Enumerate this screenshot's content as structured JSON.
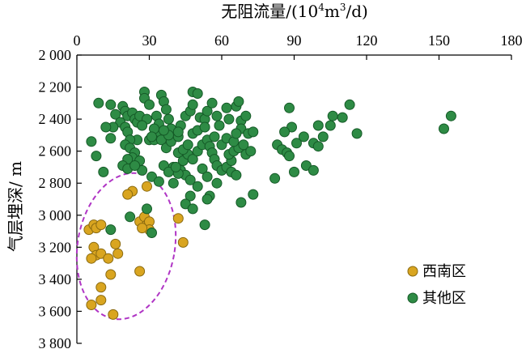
{
  "chart_data": {
    "type": "scatter",
    "x_axis": {
      "label_main": "无阻流量/(10",
      "label_sup1": "4",
      "label_mid": "m",
      "label_sup2": "3",
      "label_end": "/d)",
      "position": "top",
      "range": [
        0,
        180
      ],
      "ticks": [
        0,
        30,
        60,
        90,
        120,
        150,
        180
      ],
      "tick_labels": [
        "0",
        "30",
        "60",
        "90",
        "120",
        "150",
        "180"
      ]
    },
    "y_axis": {
      "label": "气层埋深/ m",
      "range": [
        2000,
        3800
      ],
      "inverted": true,
      "ticks": [
        2000,
        2200,
        2400,
        2600,
        2800,
        3000,
        3200,
        3400,
        3600,
        3800
      ],
      "tick_labels": [
        "2 000",
        "2 200",
        "2 400",
        "2 600",
        "2 800",
        "3 000",
        "3 200",
        "3 400",
        "3 600",
        "3 800"
      ]
    },
    "legend": {
      "position": "bottom-right"
    },
    "series": [
      {
        "name": "西南区",
        "color": "#d9a520",
        "points": [
          [
            5,
            3090
          ],
          [
            7,
            3060
          ],
          [
            8,
            3080
          ],
          [
            10,
            3060
          ],
          [
            29,
            2820
          ],
          [
            23,
            2850
          ],
          [
            21,
            2870
          ],
          [
            26,
            3040
          ],
          [
            28,
            3010
          ],
          [
            29,
            3060
          ],
          [
            30,
            3040
          ],
          [
            30,
            3090
          ],
          [
            27,
            3080
          ],
          [
            42,
            3020
          ],
          [
            44,
            3170
          ],
          [
            16,
            3180
          ],
          [
            17,
            3240
          ],
          [
            7,
            3200
          ],
          [
            8,
            3250
          ],
          [
            10,
            3240
          ],
          [
            13,
            3270
          ],
          [
            6,
            3270
          ],
          [
            26,
            3350
          ],
          [
            14,
            3370
          ],
          [
            10,
            3450
          ],
          [
            10,
            3530
          ],
          [
            6,
            3560
          ],
          [
            15,
            3620
          ]
        ]
      },
      {
        "name": "其他区",
        "color": "#2e8b45",
        "points": [
          [
            9,
            2300
          ],
          [
            14,
            2310
          ],
          [
            16,
            2370
          ],
          [
            19,
            2320
          ],
          [
            20,
            2350
          ],
          [
            21,
            2380
          ],
          [
            23,
            2360
          ],
          [
            24,
            2400
          ],
          [
            25,
            2420
          ],
          [
            26,
            2380
          ],
          [
            18,
            2420
          ],
          [
            20,
            2450
          ],
          [
            21,
            2480
          ],
          [
            15,
            2450
          ],
          [
            12,
            2450
          ],
          [
            14,
            2520
          ],
          [
            6,
            2540
          ],
          [
            8,
            2630
          ],
          [
            11,
            2730
          ],
          [
            28,
            2230
          ],
          [
            28,
            2270
          ],
          [
            30,
            2310
          ],
          [
            29,
            2400
          ],
          [
            33,
            2380
          ],
          [
            34,
            2430
          ],
          [
            35,
            2250
          ],
          [
            36,
            2290
          ],
          [
            37,
            2340
          ],
          [
            38,
            2400
          ],
          [
            39,
            2460
          ],
          [
            34,
            2500
          ],
          [
            30,
            2530
          ],
          [
            32,
            2530
          ],
          [
            25,
            2530
          ],
          [
            22,
            2530
          ],
          [
            20,
            2560
          ],
          [
            22,
            2580
          ],
          [
            24,
            2610
          ],
          [
            23,
            2640
          ],
          [
            21,
            2650
          ],
          [
            19,
            2690
          ],
          [
            21,
            2710
          ],
          [
            26,
            2660
          ],
          [
            35,
            2530
          ],
          [
            37,
            2580
          ],
          [
            39,
            2540
          ],
          [
            42,
            2510
          ],
          [
            43,
            2440
          ],
          [
            45,
            2380
          ],
          [
            47,
            2350
          ],
          [
            48,
            2310
          ],
          [
            48,
            2230
          ],
          [
            50,
            2240
          ],
          [
            51,
            2390
          ],
          [
            53,
            2400
          ],
          [
            54,
            2350
          ],
          [
            56,
            2300
          ],
          [
            58,
            2380
          ],
          [
            59,
            2440
          ],
          [
            62,
            2330
          ],
          [
            63,
            2400
          ],
          [
            66,
            2320
          ],
          [
            67,
            2290
          ],
          [
            68,
            2410
          ],
          [
            70,
            2380
          ],
          [
            68,
            2460
          ],
          [
            71,
            2490
          ],
          [
            73,
            2480
          ],
          [
            42,
            2610
          ],
          [
            44,
            2660
          ],
          [
            46,
            2620
          ],
          [
            48,
            2650
          ],
          [
            50,
            2600
          ],
          [
            52,
            2560
          ],
          [
            54,
            2530
          ],
          [
            55,
            2570
          ],
          [
            56,
            2610
          ],
          [
            57,
            2650
          ],
          [
            58,
            2690
          ],
          [
            60,
            2720
          ],
          [
            62,
            2700
          ],
          [
            64,
            2660
          ],
          [
            63,
            2620
          ],
          [
            65,
            2600
          ],
          [
            67,
            2580
          ],
          [
            69,
            2560
          ],
          [
            70,
            2620
          ],
          [
            72,
            2600
          ],
          [
            40,
            2700
          ],
          [
            43,
            2720
          ],
          [
            45,
            2750
          ],
          [
            47,
            2780
          ],
          [
            52,
            2710
          ],
          [
            54,
            2760
          ],
          [
            58,
            2800
          ],
          [
            64,
            2730
          ],
          [
            66,
            2750
          ],
          [
            73,
            2870
          ],
          [
            55,
            2880
          ],
          [
            54,
            2900
          ],
          [
            47,
            2880
          ],
          [
            45,
            2930
          ],
          [
            48,
            2960
          ],
          [
            29,
            2960
          ],
          [
            22,
            3010
          ],
          [
            31,
            3110
          ],
          [
            14,
            3090
          ],
          [
            53,
            3060
          ],
          [
            68,
            2920
          ],
          [
            36,
            2690
          ],
          [
            38,
            2730
          ],
          [
            42,
            2740
          ],
          [
            31,
            2760
          ],
          [
            34,
            2790
          ],
          [
            40,
            2800
          ],
          [
            50,
            2820
          ],
          [
            27,
            2720
          ],
          [
            24,
            2690
          ],
          [
            41,
            2700
          ],
          [
            44,
            2590
          ],
          [
            46,
            2560
          ],
          [
            48,
            2490
          ],
          [
            50,
            2470
          ],
          [
            53,
            2450
          ],
          [
            57,
            2510
          ],
          [
            60,
            2560
          ],
          [
            62,
            2520
          ],
          [
            65,
            2540
          ],
          [
            66,
            2490
          ],
          [
            42,
            2480
          ],
          [
            38,
            2500
          ],
          [
            36,
            2470
          ],
          [
            32,
            2460
          ],
          [
            27,
            2440
          ],
          [
            31,
            2510
          ],
          [
            88,
            2330
          ],
          [
            89,
            2450
          ],
          [
            86,
            2480
          ],
          [
            83,
            2560
          ],
          [
            85,
            2590
          ],
          [
            87,
            2610
          ],
          [
            88,
            2630
          ],
          [
            91,
            2550
          ],
          [
            94,
            2510
          ],
          [
            98,
            2550
          ],
          [
            100,
            2570
          ],
          [
            100,
            2440
          ],
          [
            102,
            2510
          ],
          [
            105,
            2440
          ],
          [
            106,
            2380
          ],
          [
            110,
            2390
          ],
          [
            113,
            2310
          ],
          [
            116,
            2490
          ],
          [
            95,
            2690
          ],
          [
            98,
            2720
          ],
          [
            90,
            2730
          ],
          [
            82,
            2770
          ],
          [
            152,
            2460
          ],
          [
            155,
            2380
          ]
        ]
      }
    ]
  }
}
